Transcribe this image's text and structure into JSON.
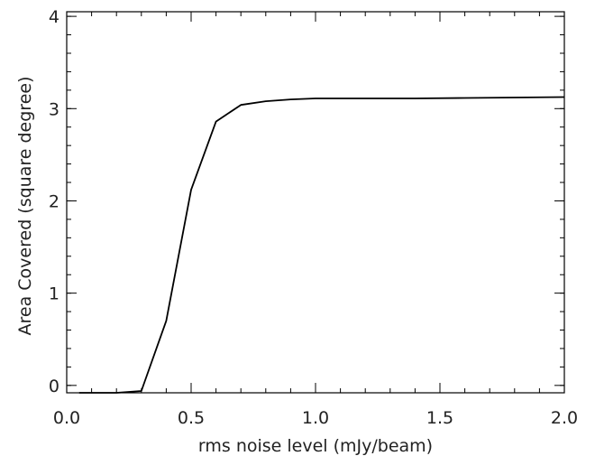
{
  "chart_data": {
    "type": "line",
    "title": "",
    "xlabel": "rms noise level (mJy/beam)",
    "ylabel": "Area Covered (square degree)",
    "xlim": [
      0.0,
      2.0
    ],
    "ylim": [
      -0.08,
      4.05
    ],
    "x_major_ticks": [
      0.0,
      0.5,
      1.0,
      1.5,
      2.0
    ],
    "x_tick_labels": [
      "0.0",
      "0.5",
      "1.0",
      "1.5",
      "2.0"
    ],
    "x_minor_step": 0.1,
    "y_major_ticks": [
      0,
      1,
      2,
      3,
      4
    ],
    "y_tick_labels": [
      "0",
      "1",
      "2",
      "3",
      "4"
    ],
    "y_minor_step": 0.2,
    "grid": false,
    "line_color": "#000000",
    "series": [
      {
        "x": [
          0.05,
          0.1,
          0.2,
          0.3,
          0.4,
          0.5,
          0.6,
          0.7,
          0.8,
          0.9,
          1.0,
          1.2,
          1.4,
          1.6,
          1.8,
          2.0
        ],
        "y": [
          -0.08,
          -0.08,
          -0.08,
          -0.06,
          0.7,
          2.12,
          2.86,
          3.04,
          3.08,
          3.1,
          3.11,
          3.11,
          3.11,
          3.115,
          3.12,
          3.125
        ]
      }
    ]
  }
}
